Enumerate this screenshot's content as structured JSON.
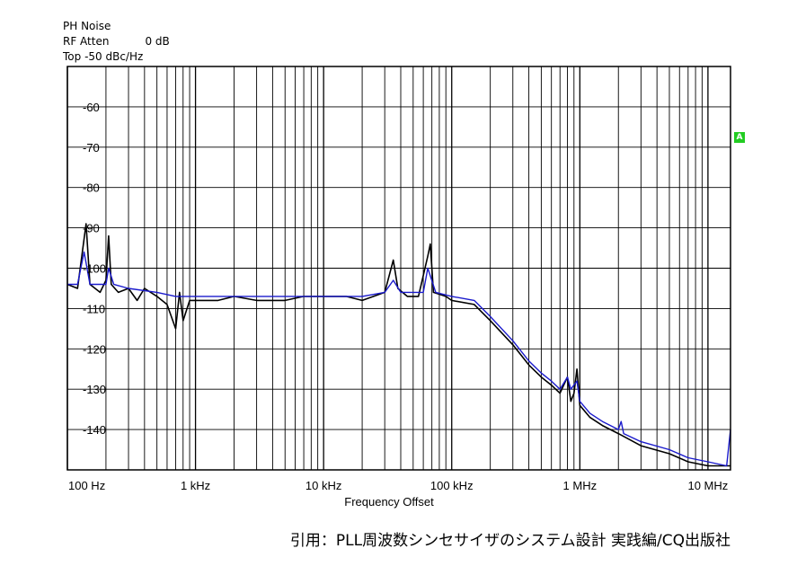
{
  "header": {
    "line1": "PH Noise",
    "line2_label": "RF Atten",
    "line2_value": "0 dB",
    "line3": "Top -50 dBc/Hz"
  },
  "marker_label": "A",
  "citation": "引用：PLL周波数シンセサイザのシステム設計 実践編/CQ出版社",
  "chart_data": {
    "type": "line",
    "title": "",
    "xlabel": "Frequency Offset",
    "ylabel": "",
    "xscale": "log",
    "xlim": [
      100,
      15000000
    ],
    "ylim": [
      -150,
      -50
    ],
    "grid": true,
    "x_ticks": [
      {
        "value": 100,
        "label": "100 Hz"
      },
      {
        "value": 1000,
        "label": "1 kHz"
      },
      {
        "value": 10000,
        "label": "10 kHz"
      },
      {
        "value": 100000,
        "label": "100 kHz"
      },
      {
        "value": 1000000,
        "label": "1 MHz"
      },
      {
        "value": 10000000,
        "label": "10 MHz"
      }
    ],
    "y_ticks": [
      {
        "value": -60,
        "label": "-60"
      },
      {
        "value": -70,
        "label": "-70"
      },
      {
        "value": -80,
        "label": "-80"
      },
      {
        "value": -90,
        "label": "-90"
      },
      {
        "value": -100,
        "label": "-100"
      },
      {
        "value": -110,
        "label": "-110"
      },
      {
        "value": -120,
        "label": "-120"
      },
      {
        "value": -130,
        "label": "-130"
      },
      {
        "value": -140,
        "label": "-140"
      }
    ],
    "colors": {
      "raw": "#000000",
      "smoothed": "#1a1acc",
      "grid": "#000000"
    },
    "series": [
      {
        "color": "#000000",
        "points": [
          [
            100,
            -104
          ],
          [
            120,
            -105
          ],
          [
            140,
            -89
          ],
          [
            150,
            -104
          ],
          [
            180,
            -106
          ],
          [
            200,
            -103
          ],
          [
            210,
            -92
          ],
          [
            220,
            -104
          ],
          [
            250,
            -106
          ],
          [
            300,
            -105
          ],
          [
            350,
            -108
          ],
          [
            400,
            -105
          ],
          [
            500,
            -107
          ],
          [
            600,
            -109
          ],
          [
            700,
            -115
          ],
          [
            750,
            -106
          ],
          [
            800,
            -113
          ],
          [
            900,
            -108
          ],
          [
            1000,
            -108
          ],
          [
            1500,
            -108
          ],
          [
            2000,
            -107
          ],
          [
            3000,
            -108
          ],
          [
            5000,
            -108
          ],
          [
            7000,
            -107
          ],
          [
            10000,
            -107
          ],
          [
            15000,
            -107
          ],
          [
            20000,
            -108
          ],
          [
            30000,
            -106
          ],
          [
            35000,
            -98
          ],
          [
            38000,
            -105
          ],
          [
            45000,
            -107
          ],
          [
            55000,
            -107
          ],
          [
            65000,
            -97
          ],
          [
            68000,
            -94
          ],
          [
            72000,
            -106
          ],
          [
            90000,
            -107
          ],
          [
            100000,
            -108
          ],
          [
            150000,
            -109
          ],
          [
            200000,
            -113
          ],
          [
            300000,
            -119
          ],
          [
            400000,
            -124
          ],
          [
            500000,
            -127
          ],
          [
            600000,
            -129
          ],
          [
            700000,
            -131
          ],
          [
            800000,
            -127
          ],
          [
            850000,
            -133
          ],
          [
            900000,
            -131
          ],
          [
            950000,
            -125
          ],
          [
            1000000,
            -134
          ],
          [
            1200000,
            -137
          ],
          [
            1500000,
            -139
          ],
          [
            2000000,
            -141
          ],
          [
            3000000,
            -144
          ],
          [
            5000000,
            -146
          ],
          [
            7000000,
            -148
          ],
          [
            10000000,
            -149
          ],
          [
            15000000,
            -149
          ]
        ]
      },
      {
        "color": "#1a1acc",
        "points": [
          [
            100,
            -104
          ],
          [
            120,
            -104
          ],
          [
            135,
            -96
          ],
          [
            150,
            -104
          ],
          [
            200,
            -104
          ],
          [
            210,
            -100
          ],
          [
            230,
            -104
          ],
          [
            300,
            -105
          ],
          [
            500,
            -106
          ],
          [
            700,
            -107
          ],
          [
            1000,
            -107
          ],
          [
            2000,
            -107
          ],
          [
            5000,
            -107
          ],
          [
            10000,
            -107
          ],
          [
            20000,
            -107
          ],
          [
            30000,
            -106
          ],
          [
            35000,
            -103
          ],
          [
            40000,
            -106
          ],
          [
            60000,
            -106
          ],
          [
            65000,
            -100
          ],
          [
            75000,
            -106
          ],
          [
            100000,
            -107
          ],
          [
            150000,
            -108
          ],
          [
            200000,
            -112
          ],
          [
            300000,
            -118
          ],
          [
            400000,
            -123
          ],
          [
            500000,
            -126
          ],
          [
            600000,
            -128
          ],
          [
            700000,
            -130
          ],
          [
            800000,
            -127
          ],
          [
            850000,
            -130
          ],
          [
            950000,
            -128
          ],
          [
            1000000,
            -133
          ],
          [
            1200000,
            -136
          ],
          [
            1500000,
            -138
          ],
          [
            2000000,
            -140
          ],
          [
            2100000,
            -138
          ],
          [
            2200000,
            -141
          ],
          [
            3000000,
            -143
          ],
          [
            5000000,
            -145
          ],
          [
            7000000,
            -147
          ],
          [
            10000000,
            -148
          ],
          [
            14000000,
            -149
          ],
          [
            15000000,
            -140
          ]
        ]
      }
    ]
  }
}
